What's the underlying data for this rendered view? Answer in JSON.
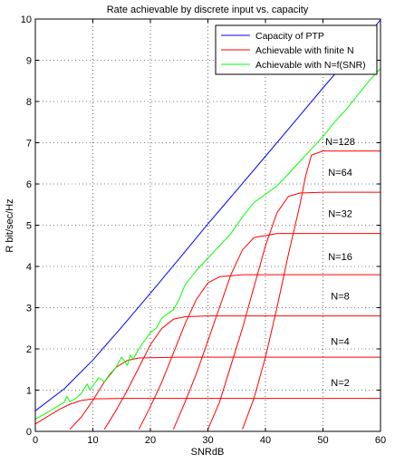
{
  "chart_data": {
    "type": "line",
    "title": "Rate achievable by discrete input vs. capacity",
    "xlabel": "SNRdB",
    "ylabel": "R bit/sec/Hz",
    "xlim": [
      0,
      60
    ],
    "ylim": [
      0,
      10
    ],
    "x_ticks": [
      0,
      10,
      20,
      30,
      40,
      50,
      60
    ],
    "y_ticks": [
      0,
      1,
      2,
      3,
      4,
      5,
      6,
      7,
      8,
      9,
      10
    ],
    "grid": true,
    "legend_position": "top-right",
    "legend": [
      {
        "label": "Capacity of PTP",
        "color": "#0000ff"
      },
      {
        "label": "Achievable with finite N",
        "color": "#ff0000"
      },
      {
        "label": "Achievable with N=f(SNR)",
        "color": "#00ff00"
      }
    ],
    "colors": {
      "capacity": "#0000ff",
      "finite": "#ff0000",
      "adaptive": "#00ff00"
    },
    "series": [
      {
        "name": "Capacity of PTP",
        "x": [
          0,
          5,
          10,
          15,
          20,
          25,
          30,
          35,
          40,
          45,
          50,
          55,
          60
        ],
        "y": [
          0.5,
          1.03,
          1.73,
          2.53,
          3.35,
          4.19,
          5.03,
          5.85,
          6.67,
          7.5,
          8.33,
          9.14,
          9.98
        ]
      },
      {
        "name": "N=2",
        "x": [
          0,
          2,
          4,
          6,
          8,
          10,
          15,
          20,
          30,
          40,
          50,
          60
        ],
        "y": [
          0.18,
          0.35,
          0.52,
          0.66,
          0.75,
          0.79,
          0.8,
          0.8,
          0.8,
          0.8,
          0.8,
          0.8
        ]
      },
      {
        "name": "N=4",
        "x": [
          6,
          8,
          10,
          12,
          14,
          16,
          18,
          25,
          40,
          60
        ],
        "y": [
          0.05,
          0.35,
          0.75,
          1.2,
          1.55,
          1.72,
          1.78,
          1.8,
          1.8,
          1.8
        ]
      },
      {
        "name": "N=8",
        "x": [
          12,
          14,
          16,
          18,
          20,
          22,
          24,
          26,
          30,
          40,
          60
        ],
        "y": [
          0.05,
          0.5,
          1.0,
          1.55,
          2.1,
          2.5,
          2.72,
          2.78,
          2.8,
          2.8,
          2.8
        ]
      },
      {
        "name": "N=16",
        "x": [
          18,
          20,
          22,
          24,
          26,
          28,
          30,
          32,
          36,
          40,
          60
        ],
        "y": [
          0.05,
          0.6,
          1.2,
          1.9,
          2.6,
          3.2,
          3.6,
          3.75,
          3.8,
          3.8,
          3.8
        ]
      },
      {
        "name": "N=32",
        "x": [
          24,
          26,
          28,
          30,
          32,
          34,
          36,
          38,
          42,
          60
        ],
        "y": [
          0.05,
          0.7,
          1.4,
          2.2,
          3.0,
          3.8,
          4.4,
          4.7,
          4.8,
          4.8
        ]
      },
      {
        "name": "N=64",
        "x": [
          30,
          32,
          34,
          36,
          38,
          40,
          42,
          44,
          46,
          50,
          60
        ],
        "y": [
          0.05,
          0.7,
          1.6,
          2.5,
          3.5,
          4.5,
          5.3,
          5.7,
          5.78,
          5.8,
          5.8
        ]
      },
      {
        "name": "N=128",
        "x": [
          36,
          38,
          40,
          42,
          44,
          46,
          47,
          48,
          50,
          60
        ],
        "y": [
          0.05,
          0.8,
          1.8,
          3.0,
          4.3,
          5.5,
          6.2,
          6.7,
          6.8,
          6.8
        ]
      },
      {
        "name": "Achievable with N=f(SNR)",
        "x": [
          0,
          2,
          4,
          5,
          5.5,
          6,
          7,
          8,
          9,
          9.5,
          10,
          11,
          12,
          13,
          14,
          15,
          16,
          16.5,
          17,
          18,
          19,
          20,
          21,
          22,
          23,
          24,
          25,
          26,
          28,
          30,
          32,
          34,
          36,
          38,
          40,
          42,
          44,
          46,
          48,
          50,
          52,
          54,
          56,
          58,
          60
        ],
        "y": [
          0.3,
          0.45,
          0.62,
          0.7,
          0.85,
          0.72,
          0.8,
          0.92,
          1.15,
          1.0,
          1.1,
          1.3,
          1.2,
          1.4,
          1.55,
          1.8,
          1.6,
          1.85,
          1.75,
          2.0,
          2.2,
          2.4,
          2.5,
          2.75,
          2.85,
          2.95,
          3.2,
          3.55,
          3.9,
          4.2,
          4.5,
          4.8,
          5.2,
          5.55,
          5.75,
          5.95,
          6.25,
          6.55,
          6.85,
          7.15,
          7.5,
          7.8,
          8.15,
          8.5,
          8.8
        ]
      }
    ],
    "annotations": [
      {
        "text": "N=128",
        "x": 53,
        "y": 6.95
      },
      {
        "text": "N=64",
        "x": 53,
        "y": 6.2
      },
      {
        "text": "N=32",
        "x": 53,
        "y": 5.2
      },
      {
        "text": "N=16",
        "x": 53,
        "y": 4.15
      },
      {
        "text": "N=8",
        "x": 53,
        "y": 3.2
      },
      {
        "text": "N=4",
        "x": 53,
        "y": 2.1
      },
      {
        "text": "N=2",
        "x": 53,
        "y": 1.1
      }
    ]
  }
}
